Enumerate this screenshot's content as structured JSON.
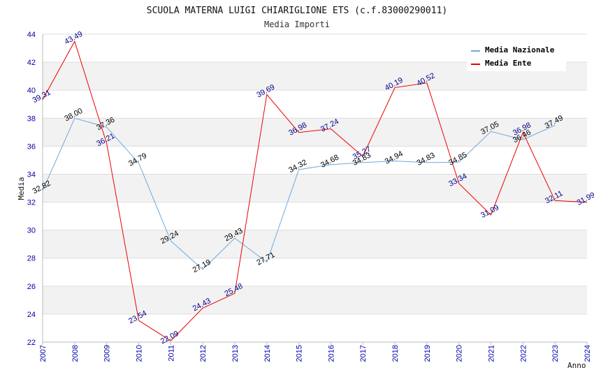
{
  "chart_data": {
    "type": "line",
    "title": "SCUOLA MATERNA LUIGI CHIARIGLIONE ETS (c.f.83000290011)",
    "subtitle": "Media Importi",
    "xlabel": "Anno",
    "ylabel": "Media",
    "ylim": [
      22,
      44
    ],
    "yticks": [
      22,
      24,
      26,
      28,
      30,
      32,
      34,
      36,
      38,
      40,
      42,
      44
    ],
    "grid": true,
    "legend_position": "top-right",
    "x": [
      "2007",
      "2008",
      "2009",
      "2010",
      "2011",
      "2012",
      "2013",
      "2014",
      "2015",
      "2016",
      "2017",
      "2018",
      "2019",
      "2020",
      "2021",
      "2022",
      "2023",
      "2024"
    ],
    "series": [
      {
        "name": "Media Nazionale",
        "color": "#6fa8dc",
        "label_color": "#000000",
        "values": [
          32.82,
          38.0,
          37.36,
          34.79,
          29.24,
          27.19,
          29.43,
          27.71,
          34.32,
          34.68,
          34.83,
          34.94,
          34.83,
          34.85,
          37.05,
          36.46,
          37.49,
          null
        ],
        "labels": [
          "32.82",
          "38.00",
          "37.36",
          "34.79",
          "29.24",
          "27.19",
          "29.43",
          "27.71",
          "34.32",
          "34.68",
          "34.83",
          "34.94",
          "34.83",
          "34.85",
          "37.05",
          "36.46",
          "37.49",
          null
        ]
      },
      {
        "name": "Media Ente",
        "color": "#ee0000",
        "label_color": "#00008b",
        "values": [
          39.31,
          43.49,
          36.21,
          23.54,
          22.09,
          24.43,
          25.48,
          39.69,
          36.98,
          37.24,
          35.27,
          40.19,
          40.52,
          33.34,
          31.09,
          36.98,
          32.11,
          31.99
        ],
        "labels": [
          "39.31",
          "43.49",
          "36.21",
          "23.54",
          "22.09",
          "24.43",
          "25.48",
          "39.69",
          "36.98",
          "37.24",
          "35.27",
          "40.19",
          "40.52",
          "33.34",
          "31.09",
          "36.98",
          "32.11",
          "31.99"
        ]
      }
    ]
  }
}
